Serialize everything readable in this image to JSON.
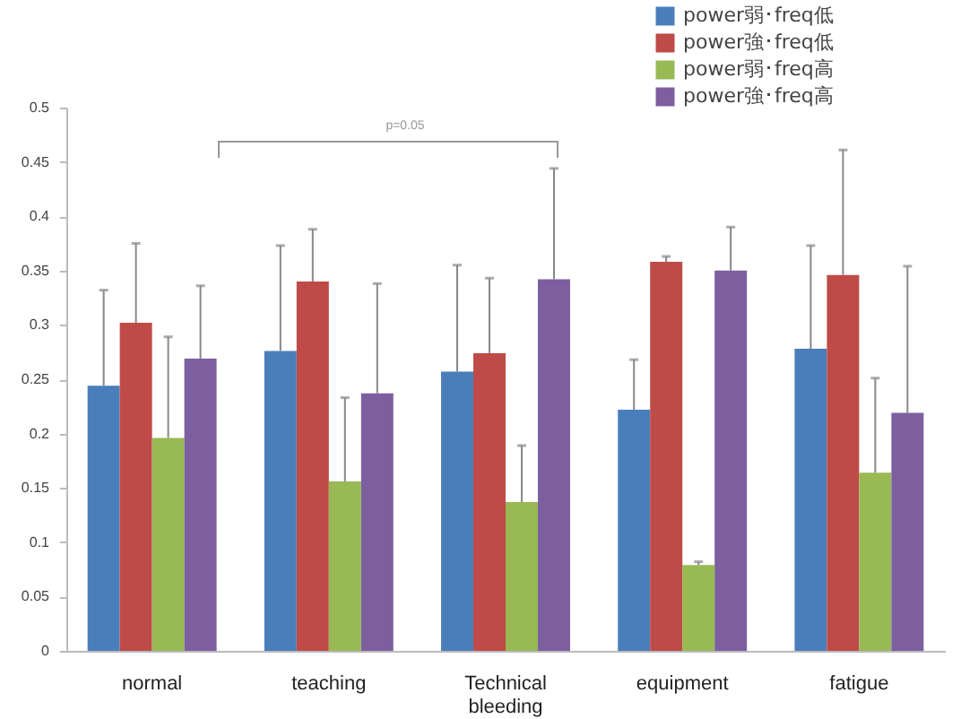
{
  "chart_data": {
    "type": "bar",
    "categories": [
      "normal",
      "teaching",
      "Technical bleeding",
      "equipment",
      "fatigue"
    ],
    "series": [
      {
        "name": "power弱･freq低",
        "color": "#4a7ebb",
        "values": [
          0.244,
          0.276,
          0.257,
          0.222,
          0.278
        ],
        "errors": [
          [
            0.244,
            0.332
          ],
          [
            0.276,
            0.373
          ],
          [
            0.257,
            0.355
          ],
          [
            0.222,
            0.268
          ],
          [
            0.278,
            0.373
          ]
        ]
      },
      {
        "name": "power強･freq低",
        "color": "#be4b48",
        "values": [
          0.302,
          0.34,
          0.274,
          0.358,
          0.346
        ],
        "errors": [
          [
            0.302,
            0.375
          ],
          [
            0.34,
            0.388
          ],
          [
            0.274,
            0.343
          ],
          [
            0.358,
            0.363
          ],
          [
            0.346,
            0.461
          ]
        ]
      },
      {
        "name": "power弱･freq高",
        "color": "#98b954",
        "values": [
          0.196,
          0.156,
          0.137,
          0.079,
          0.164
        ],
        "errors": [
          [
            0.196,
            0.289
          ],
          [
            0.156,
            0.233
          ],
          [
            0.137,
            0.189
          ],
          [
            0.079,
            0.082
          ],
          [
            0.164,
            0.251
          ]
        ]
      },
      {
        "name": "power強･freq高",
        "color": "#7d5fa0",
        "values": [
          0.269,
          0.237,
          0.342,
          0.35,
          0.219
        ],
        "errors": [
          [
            0.269,
            0.336
          ],
          [
            0.237,
            0.338
          ],
          [
            0.342,
            0.444
          ],
          [
            0.35,
            0.39
          ],
          [
            0.219,
            0.354
          ]
        ]
      }
    ],
    "ylim": [
      0,
      0.5
    ],
    "yticks": [
      0,
      0.05,
      0.1,
      0.15,
      0.2,
      0.25,
      0.3,
      0.35,
      0.4,
      0.45,
      0.5
    ],
    "grid": false,
    "legend": "top right",
    "annotations": [
      "p=0.05"
    ]
  }
}
